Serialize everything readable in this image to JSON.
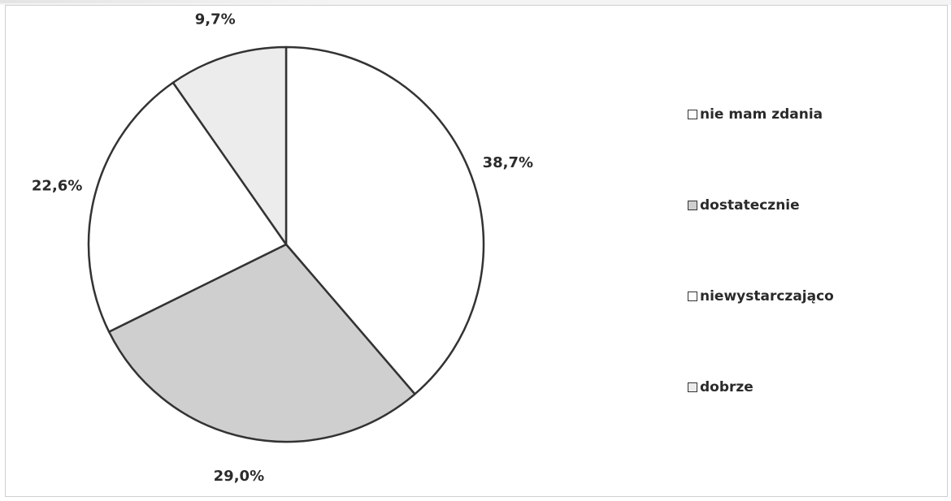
{
  "chart_data": {
    "type": "pie",
    "slices": [
      {
        "label": "nie mam zdania",
        "value": 38.7,
        "text": "38,7%",
        "color": "#ffffff"
      },
      {
        "label": "dostatecznie",
        "value": 29.0,
        "text": "29,0%",
        "color": "#cfcfcf"
      },
      {
        "label": "niewystarczająco",
        "value": 22.6,
        "text": "22,6%",
        "color": "#ffffff"
      },
      {
        "label": "dobrze",
        "value": 9.7,
        "text": "9,7%",
        "color": "#ececec"
      }
    ],
    "legend_position": "right",
    "start": "12 o'clock, clockwise"
  }
}
